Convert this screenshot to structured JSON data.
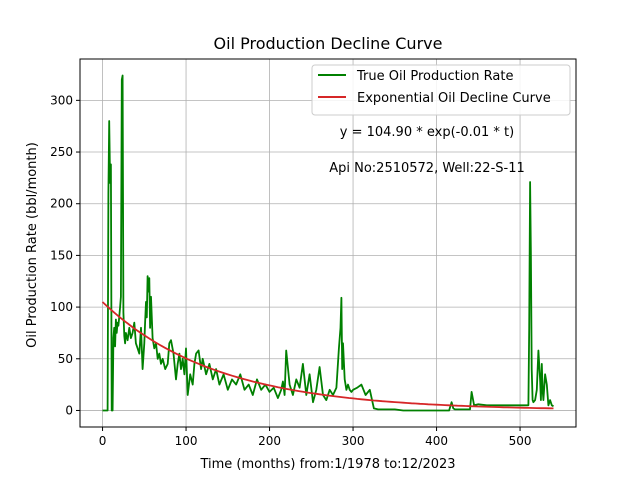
{
  "chart_data": {
    "type": "line",
    "title": "Oil Production Decline Curve",
    "xlabel": "Time (months) from:1/1978 to:12/2023",
    "ylabel": "Oil Production Rate (bbl/month)",
    "xlim": [
      -27,
      567
    ],
    "ylim": [
      -16,
      340
    ],
    "xticks": [
      0,
      100,
      200,
      300,
      400,
      500
    ],
    "yticks": [
      0,
      50,
      100,
      150,
      200,
      250,
      300
    ],
    "grid": true,
    "legend_position": "top-right",
    "annotations": [
      "y = 104.90 * exp(-0.01 * t)",
      "Api No:2510572, Well:22-S-11"
    ],
    "colors": {
      "true_rate": "#008000",
      "fit": "#d62728",
      "grid": "#b0b0b0"
    },
    "series": [
      {
        "name": "True Oil Production Rate",
        "x": [
          0,
          2,
          4,
          6,
          7,
          8,
          9,
          10,
          11,
          12,
          13,
          14,
          15,
          16,
          17,
          18,
          19,
          20,
          21,
          22,
          23,
          24,
          25,
          26,
          27,
          28,
          30,
          32,
          34,
          36,
          38,
          40,
          42,
          44,
          46,
          48,
          50,
          51,
          52,
          53,
          54,
          55,
          56,
          57,
          58,
          60,
          62,
          64,
          66,
          68,
          70,
          72,
          75,
          78,
          80,
          82,
          85,
          88,
          90,
          92,
          94,
          96,
          98,
          100,
          102,
          105,
          108,
          110,
          112,
          115,
          118,
          120,
          124,
          128,
          132,
          136,
          140,
          145,
          150,
          155,
          160,
          165,
          170,
          175,
          180,
          185,
          190,
          195,
          200,
          205,
          210,
          214,
          216,
          218,
          220,
          224,
          228,
          232,
          236,
          240,
          244,
          248,
          252,
          256,
          260,
          264,
          268,
          272,
          276,
          280,
          283,
          285,
          286,
          287,
          288,
          290,
          292,
          294,
          296,
          298,
          300,
          305,
          310,
          315,
          320,
          325,
          330,
          340,
          350,
          360,
          370,
          380,
          390,
          400,
          410,
          415,
          418,
          420,
          422,
          425,
          430,
          435,
          440,
          442,
          445,
          450,
          460,
          470,
          480,
          490,
          500,
          505,
          508,
          510,
          511,
          512,
          513,
          514,
          515,
          516,
          518,
          520,
          522,
          524,
          525,
          526,
          527,
          528,
          530,
          532,
          534,
          536,
          538,
          540
        ],
        "values": [
          0,
          0,
          0,
          0,
          210,
          280,
          220,
          238,
          0,
          0,
          70,
          80,
          62,
          88,
          75,
          85,
          82,
          90,
          100,
          110,
          320,
          324,
          95,
          72,
          65,
          75,
          68,
          80,
          70,
          75,
          85,
          65,
          60,
          55,
          80,
          40,
          65,
          85,
          105,
          90,
          130,
          115,
          128,
          80,
          110,
          70,
          60,
          65,
          50,
          55,
          45,
          50,
          40,
          45,
          65,
          68,
          55,
          30,
          45,
          55,
          40,
          50,
          35,
          60,
          15,
          35,
          25,
          45,
          55,
          58,
          40,
          50,
          35,
          45,
          30,
          40,
          25,
          35,
          20,
          30,
          25,
          35,
          20,
          25,
          15,
          30,
          20,
          25,
          18,
          22,
          12,
          20,
          28,
          15,
          58,
          25,
          15,
          30,
          22,
          45,
          15,
          35,
          8,
          20,
          42,
          15,
          10,
          20,
          15,
          22,
          60,
          80,
          109,
          40,
          65,
          30,
          20,
          25,
          20,
          18,
          20,
          22,
          25,
          15,
          20,
          2,
          1,
          1,
          1,
          0,
          0,
          0,
          0,
          0,
          0,
          0,
          8,
          2,
          1,
          1,
          1,
          1,
          1,
          18,
          5,
          6,
          5,
          5,
          5,
          5,
          5,
          5,
          5,
          5,
          80,
          221,
          150,
          40,
          10,
          8,
          10,
          20,
          58,
          30,
          10,
          45,
          20,
          10,
          35,
          25,
          5,
          10,
          5,
          4
        ]
      },
      {
        "name": "Exponential Oil Decline Curve",
        "equation": {
          "a": 104.9,
          "b": -0.01
        },
        "x_range": [
          0,
          540
        ]
      }
    ]
  }
}
